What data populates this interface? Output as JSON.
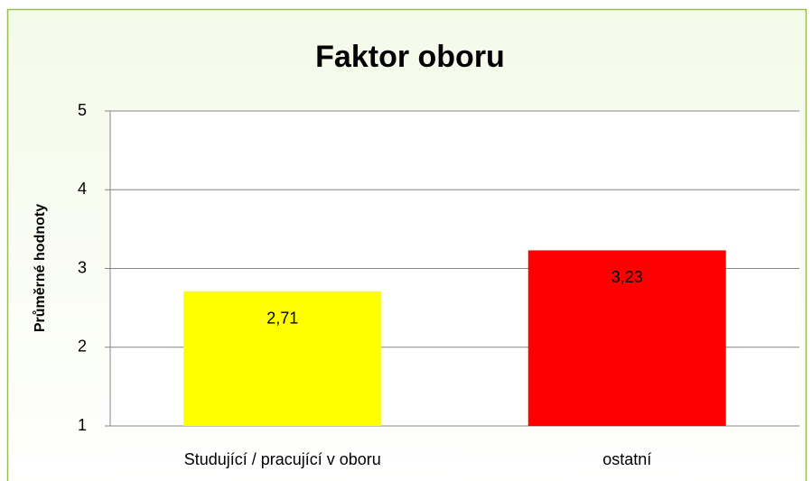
{
  "chart_data": {
    "type": "bar",
    "title": "Faktor oboru",
    "y_label": "Průměrné hodnoty",
    "categories": [
      "Studující / pracující v oboru",
      "ostatní"
    ],
    "values": [
      2.71,
      3.23
    ],
    "value_labels": [
      "2,71",
      "3,23"
    ],
    "colors": [
      "#ffff00",
      "#ff0000"
    ],
    "ylim": [
      1,
      5
    ],
    "yticks": [
      1,
      2,
      3,
      4,
      5
    ],
    "grid": true
  }
}
